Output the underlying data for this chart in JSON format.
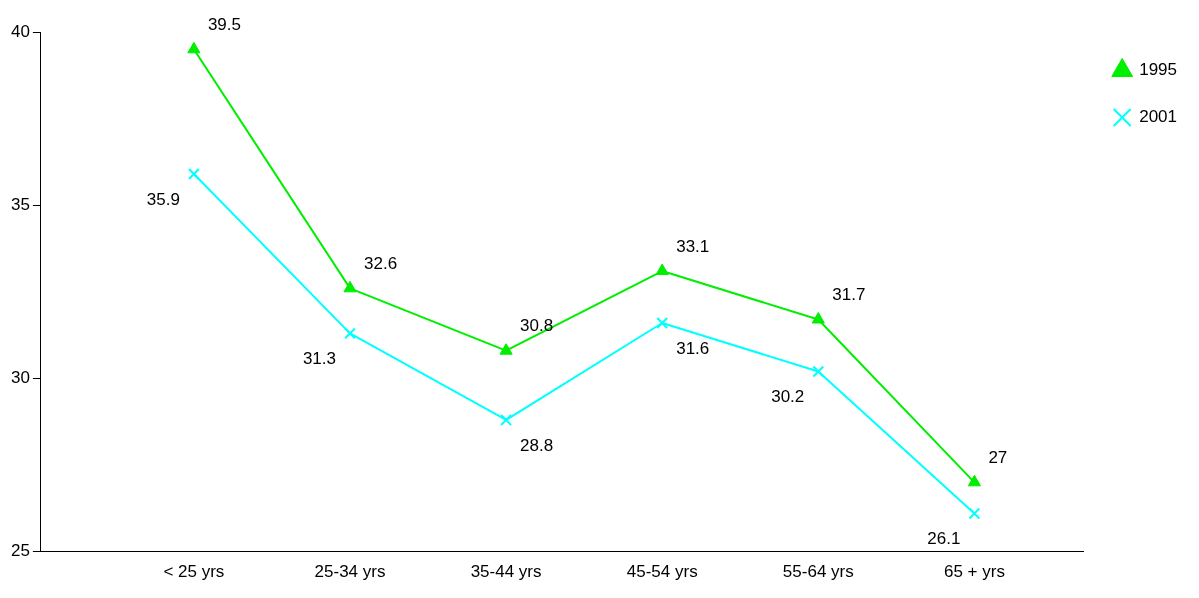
{
  "chart_data": {
    "type": "line",
    "categories": [
      "< 25 yrs",
      "25-34 yrs",
      "35-44 yrs",
      "45-54 yrs",
      "55-64 yrs",
      "65 + yrs"
    ],
    "series": [
      {
        "name": "1995",
        "color": "#00ee00",
        "marker": "triangle",
        "values": [
          39.5,
          32.6,
          30.8,
          33.1,
          31.7,
          27
        ]
      },
      {
        "name": "2001",
        "color": "#00ffff",
        "marker": "cross",
        "values": [
          35.9,
          31.3,
          28.8,
          31.6,
          30.2,
          26.1
        ]
      }
    ],
    "ylim": [
      25,
      40
    ],
    "yticks": [
      25,
      30,
      35,
      40
    ],
    "grid": false,
    "legend": "top right",
    "data_labels": true,
    "line_style": "solid"
  }
}
